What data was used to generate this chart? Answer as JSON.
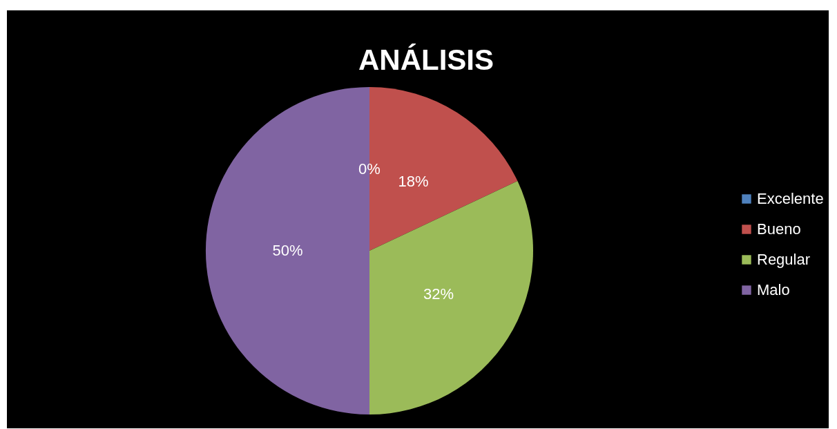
{
  "chart_data": {
    "type": "pie",
    "title": "ANÁLISIS",
    "categories": [
      "Excelente",
      "Bueno",
      "Regular",
      "Malo"
    ],
    "values": [
      0,
      18,
      32,
      50
    ],
    "colors": [
      "#4f81bd",
      "#c0504d",
      "#9bbb59",
      "#8064a2"
    ],
    "value_labels": [
      "0%",
      "18%",
      "32%",
      "50%"
    ],
    "legend": "right"
  }
}
